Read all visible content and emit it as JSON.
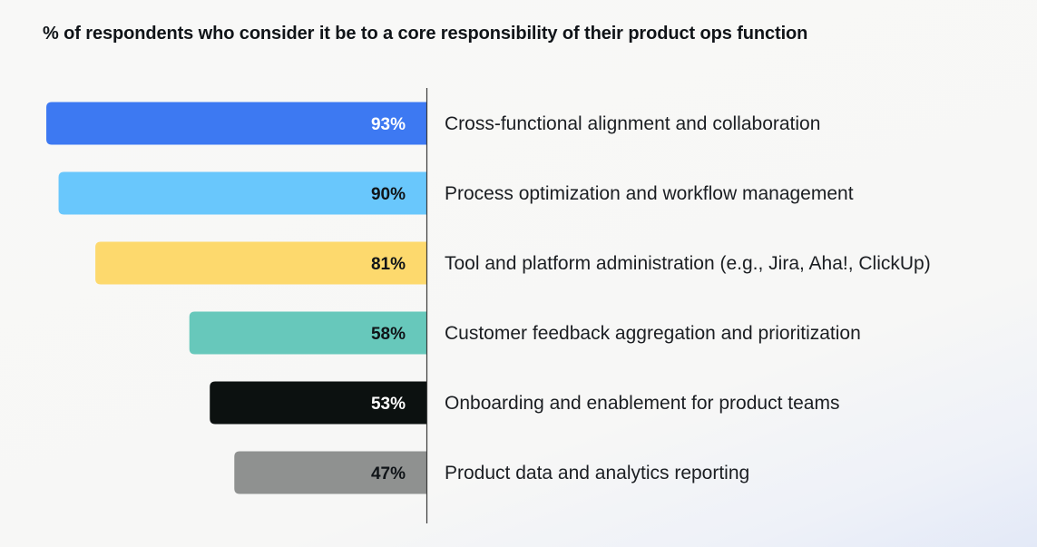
{
  "chart_data": {
    "type": "bar",
    "orientation": "horizontal",
    "title": "% of respondents who consider it be to a core responsibility of their product ops function",
    "categories": [
      "Cross-functional alignment and collaboration",
      "Process optimization and workflow management",
      "Tool and platform administration (e.g., Jira, Aha!, ClickUp)",
      "Customer feedback aggregation and prioritization",
      "Onboarding and enablement for product teams",
      "Product data and analytics reporting"
    ],
    "values": [
      93,
      90,
      81,
      58,
      53,
      47
    ],
    "value_labels": [
      "93%",
      "90%",
      "81%",
      "58%",
      "53%",
      "47%"
    ],
    "unit": "%",
    "xlim": [
      0,
      100
    ],
    "colors": [
      "#3d79f2",
      "#69c7fc",
      "#fdd96d",
      "#67c8bb",
      "#0c1110",
      "#8f9190"
    ],
    "label_colors": [
      "#ffffff",
      "#101418",
      "#101418",
      "#101418",
      "#ffffff",
      "#101418"
    ],
    "xlabel": "",
    "ylabel": ""
  }
}
